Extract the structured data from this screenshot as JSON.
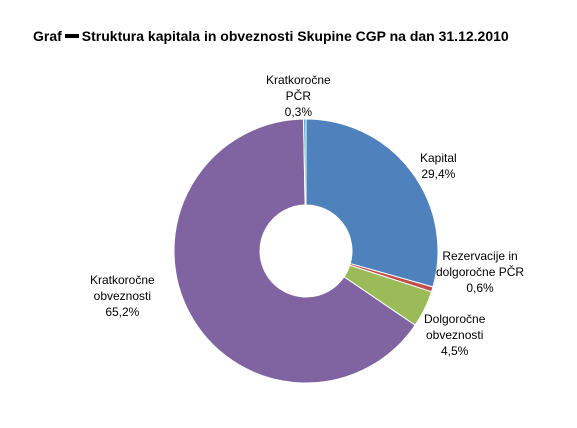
{
  "title": {
    "prefix": "Graf",
    "text": "Struktura kapitala in obveznosti Skupine CGP na dan 31.12.2010"
  },
  "chart_data": {
    "type": "pie",
    "donut": true,
    "title": "Graf ▬ Struktura kapitala in obveznosti Skupine CGP na dan 31.12.2010",
    "slices": [
      {
        "name": "Kapital",
        "value": 29.4,
        "label_lines": [
          "Kapital",
          "29,4%"
        ],
        "color": "#4f81bd"
      },
      {
        "name": "Rezervacije in dolgoročne PČR",
        "value": 0.6,
        "label_lines": [
          "Rezervacije in",
          "dolgoročne PČR",
          "0,6%"
        ],
        "color": "#c0504d"
      },
      {
        "name": "Dolgoročne obveznosti",
        "value": 4.5,
        "label_lines": [
          "Dolgoročne",
          "obveznosti",
          "4,5%"
        ],
        "color": "#9bbb59"
      },
      {
        "name": "Kratkoročne obveznosti",
        "value": 65.2,
        "label_lines": [
          "Kratkoročne",
          "obveznosti",
          "65,2%"
        ],
        "color": "#8064a2"
      },
      {
        "name": "Kratkoročne PČR",
        "value": 0.3,
        "label_lines": [
          "Kratkoročne",
          "PČR",
          "0,3%"
        ],
        "color": "#4bacc6"
      }
    ]
  }
}
